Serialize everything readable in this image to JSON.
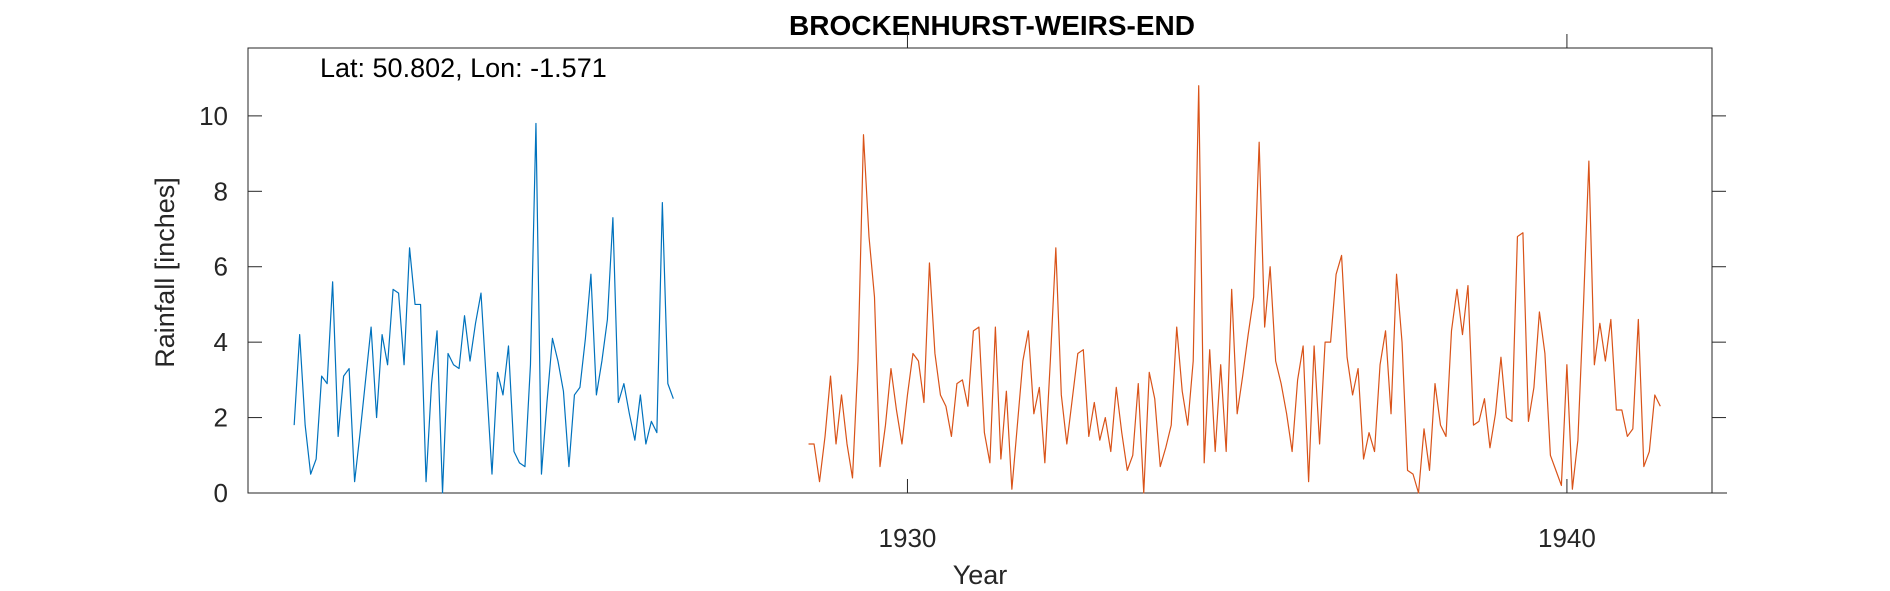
{
  "chart_data": {
    "type": "line",
    "title": "BROCKENHURST-WEIRS-END",
    "annotation": "Lat: 50.802, Lon: -1.571",
    "xlabel": "Year",
    "ylabel": "Rainfall [inches]",
    "xlim": [
      1920,
      1942.2
    ],
    "ylim": [
      0,
      11.8
    ],
    "x_ticks": [
      1930,
      1940
    ],
    "x_tick_labels": [
      "1930",
      "1940"
    ],
    "y_ticks": [
      0,
      2,
      4,
      6,
      8,
      10
    ],
    "y_tick_labels": [
      "0",
      "2",
      "4",
      "6",
      "8",
      "10"
    ],
    "grid": false,
    "legend": "none",
    "series": [
      {
        "color": "#0072BD",
        "start": 1920.7,
        "step": 0.08333,
        "values": [
          1.8,
          4.2,
          1.8,
          0.5,
          0.9,
          3.1,
          2.9,
          5.6,
          1.5,
          3.1,
          3.3,
          0.3,
          1.6,
          3,
          4.4,
          2,
          4.2,
          3.4,
          5.4,
          5.3,
          3.4,
          6.5,
          5,
          5,
          0.3,
          2.9,
          4.3,
          0,
          3.7,
          3.4,
          3.3,
          4.7,
          3.5,
          4.5,
          5.3,
          2.9,
          0.5,
          3.2,
          2.6,
          3.9,
          1.1,
          0.8,
          0.7,
          3.4,
          9.8,
          0.5,
          2.4,
          4.1,
          3.5,
          2.7,
          0.7,
          2.6,
          2.8,
          4.1,
          5.8,
          2.6,
          3.5,
          4.6,
          7.3,
          2.4,
          2.9,
          2.1,
          1.4,
          2.6,
          1.3,
          1.9,
          1.6,
          7.7,
          2.9,
          2.5
        ]
      },
      {
        "color": "#D95319",
        "start": 1928.5,
        "step": 0.08333,
        "values": [
          1.3,
          1.3,
          0.3,
          1.5,
          3.1,
          1.3,
          2.6,
          1.3,
          0.4,
          3.5,
          9.5,
          6.8,
          5.2,
          0.7,
          1.8,
          3.3,
          2.2,
          1.3,
          2.6,
          3.7,
          3.5,
          2.4,
          6.1,
          3.7,
          2.6,
          2.3,
          1.5,
          2.9,
          3,
          2.3,
          4.3,
          4.4,
          1.6,
          0.8,
          4.4,
          0.9,
          2.7,
          0.1,
          1.8,
          3.5,
          4.3,
          2.1,
          2.8,
          0.8,
          3.5,
          6.5,
          2.6,
          1.3,
          2.5,
          3.7,
          3.8,
          1.5,
          2.4,
          1.4,
          2,
          1.1,
          2.8,
          1.6,
          0.6,
          1,
          2.9,
          0,
          3.2,
          2.5,
          0.7,
          1.2,
          1.8,
          4.4,
          2.7,
          1.8,
          3.5,
          10.8,
          0.8,
          3.8,
          1.1,
          3.4,
          1.1,
          5.4,
          2.1,
          3.1,
          4.2,
          5.2,
          9.3,
          4.4,
          6,
          3.5,
          2.9,
          2.1,
          1.1,
          3,
          3.9,
          0.3,
          3.9,
          1.3,
          4,
          4,
          5.8,
          6.3,
          3.6,
          2.6,
          3.3,
          0.9,
          1.6,
          1.1,
          3.4,
          4.3,
          2.1,
          5.8,
          4,
          0.6,
          0.5,
          0,
          1.7,
          0.6,
          2.9,
          1.8,
          1.5,
          4.3,
          5.4,
          4.2,
          5.5,
          1.8,
          1.9,
          2.5,
          1.2,
          2.1,
          3.6,
          2,
          1.9,
          6.8,
          6.9,
          1.9,
          2.8,
          4.8,
          3.7,
          1,
          0.6,
          0.2,
          3.4,
          0.1,
          1.4,
          4.9,
          8.8,
          3.4,
          4.5,
          3.5,
          4.6,
          2.2,
          2.2,
          1.5,
          1.7,
          4.6,
          0.7,
          1.1,
          2.6,
          2.3
        ]
      }
    ]
  }
}
